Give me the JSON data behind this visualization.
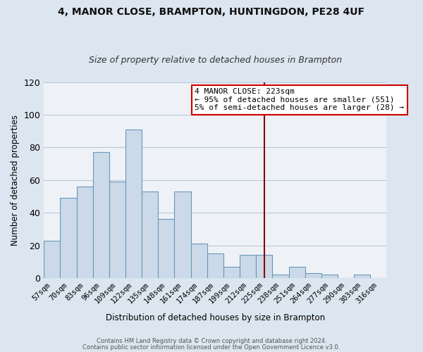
{
  "title": "4, MANOR CLOSE, BRAMPTON, HUNTINGDON, PE28 4UF",
  "subtitle": "Size of property relative to detached houses in Brampton",
  "xlabel": "Distribution of detached houses by size in Brampton",
  "ylabel": "Number of detached properties",
  "bar_color": "#ccd9e8",
  "bar_edge_color": "#6699bb",
  "categories": [
    "57sqm",
    "70sqm",
    "83sqm",
    "96sqm",
    "109sqm",
    "122sqm",
    "135sqm",
    "148sqm",
    "161sqm",
    "174sqm",
    "187sqm",
    "199sqm",
    "212sqm",
    "225sqm",
    "238sqm",
    "251sqm",
    "264sqm",
    "277sqm",
    "290sqm",
    "303sqm",
    "316sqm"
  ],
  "values": [
    23,
    49,
    56,
    77,
    59,
    91,
    53,
    36,
    53,
    21,
    15,
    7,
    14,
    14,
    2,
    7,
    3,
    2,
    0,
    2,
    0
  ],
  "vline_index": 13,
  "vline_color": "#8b0000",
  "annotation_title": "4 MANOR CLOSE: 223sqm",
  "annotation_line1": "← 95% of detached houses are smaller (551)",
  "annotation_line2": "5% of semi-detached houses are larger (28) →",
  "annotation_box_color": "#ffffff",
  "annotation_box_edge": "#cc0000",
  "ylim": [
    0,
    120
  ],
  "yticks": [
    0,
    20,
    40,
    60,
    80,
    100,
    120
  ],
  "footer1": "Contains HM Land Registry data © Crown copyright and database right 2024.",
  "footer2": "Contains public sector information licensed under the Open Government Licence v3.0.",
  "bg_color": "#dce6f0",
  "plot_bg_color": "#eef2f7",
  "grid_color": "#b8c8d8",
  "title_fontsize": 10,
  "subtitle_fontsize": 9
}
